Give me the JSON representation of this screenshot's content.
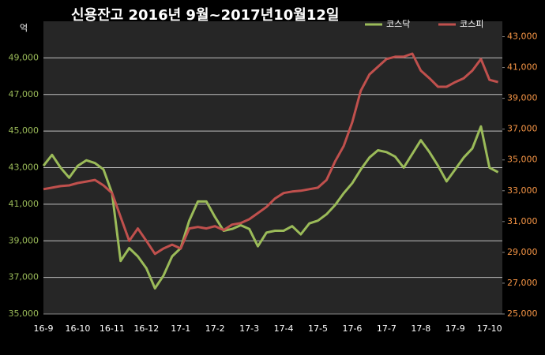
{
  "chart_data": {
    "type": "line",
    "title": "신용잔고 2016년 9월~2017년10월12일",
    "y_unit": "억",
    "categories": [
      "16-9",
      null,
      null,
      null,
      "16-10",
      null,
      null,
      null,
      "16-11",
      null,
      null,
      null,
      "16-12",
      null,
      null,
      null,
      "17-1",
      null,
      null,
      null,
      "17-2",
      null,
      null,
      null,
      "17-3",
      null,
      null,
      null,
      "17-4",
      null,
      null,
      null,
      "17-5",
      null,
      null,
      null,
      "17-6",
      null,
      null,
      null,
      "17-7",
      null,
      null,
      null,
      "17-8",
      null,
      null,
      null,
      "17-9",
      null,
      null,
      null,
      "17-10",
      null
    ],
    "series": [
      {
        "name": "코스닥",
        "color": "#9bbb59",
        "axis": "y",
        "values": [
          43100,
          43700,
          43000,
          42450,
          43100,
          43400,
          43250,
          42900,
          41600,
          37900,
          38600,
          38150,
          37500,
          36400,
          37100,
          38150,
          38600,
          40100,
          41150,
          41150,
          40300,
          39550,
          39650,
          39850,
          39650,
          38700,
          39450,
          39550,
          39550,
          39800,
          39350,
          39950,
          40100,
          40450,
          40950,
          41600,
          42150,
          42900,
          43550,
          43950,
          43850,
          43600,
          43000,
          43750,
          44500,
          43850,
          43100,
          42250,
          42900,
          43550,
          44050,
          45250,
          43000,
          42750
        ]
      },
      {
        "name": "코스피",
        "color": "#c0504d",
        "axis": "y2",
        "values": [
          33100,
          33200,
          33300,
          33350,
          33500,
          33600,
          33700,
          33350,
          32850,
          31300,
          29750,
          30550,
          29750,
          28900,
          29250,
          29500,
          29250,
          30550,
          30650,
          30550,
          30700,
          30450,
          30800,
          30900,
          31150,
          31550,
          31950,
          32500,
          32850,
          32950,
          33000,
          33100,
          33200,
          33700,
          34900,
          35900,
          37450,
          39500,
          40550,
          41050,
          41550,
          41700,
          41700,
          41900,
          40800,
          40300,
          39750,
          39750,
          40050,
          40300,
          40800,
          41550,
          40200,
          40050
        ]
      }
    ],
    "ylim": [
      35000,
      51000
    ],
    "yticks": [
      {
        "value": 35000,
        "label": "35,000"
      },
      {
        "value": 37000,
        "label": "37,000"
      },
      {
        "value": 39000,
        "label": "39,000"
      },
      {
        "value": 41000,
        "label": "41,000"
      },
      {
        "value": 43000,
        "label": "43,000"
      },
      {
        "value": 45000,
        "label": "45,000"
      },
      {
        "value": 47000,
        "label": "47,000"
      },
      {
        "value": 49000,
        "label": "49,000"
      }
    ],
    "y2lim": [
      25000,
      44000
    ],
    "y2ticks": [
      {
        "value": 25000,
        "label": "25,000"
      },
      {
        "value": 27000,
        "label": "27,000"
      },
      {
        "value": 29000,
        "label": "29,000"
      },
      {
        "value": 31000,
        "label": "31,000"
      },
      {
        "value": 33000,
        "label": "33,000"
      },
      {
        "value": 35000,
        "label": "35,000"
      },
      {
        "value": 37000,
        "label": "37,000"
      },
      {
        "value": 39000,
        "label": "39,000"
      },
      {
        "value": 41000,
        "label": "41,000"
      },
      {
        "value": 43000,
        "label": "43,000"
      }
    ],
    "yticks_color": "#9bbb59",
    "y2ticks_color": "#f79646",
    "grid": true,
    "legend": "top-right"
  }
}
